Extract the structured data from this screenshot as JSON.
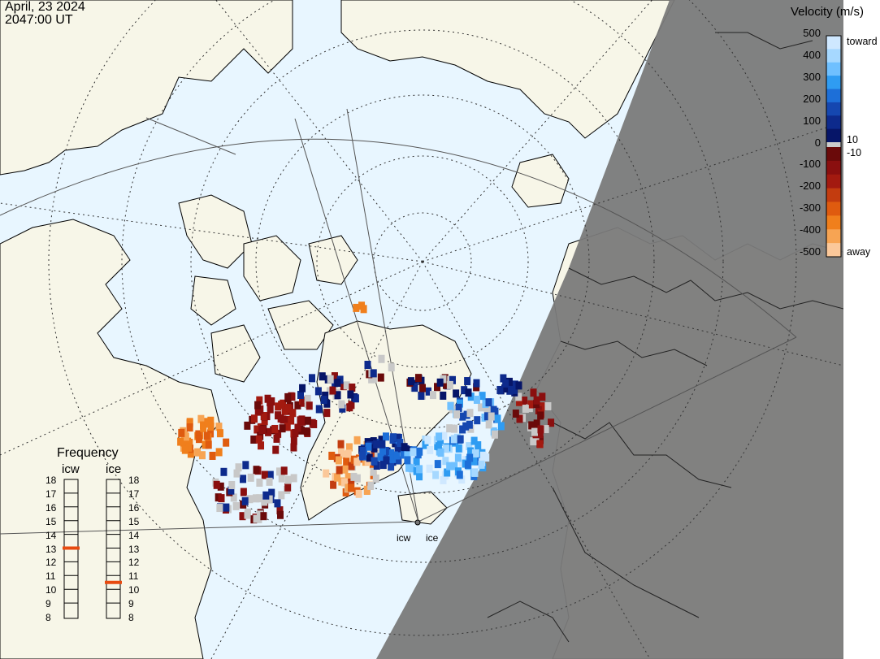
{
  "header": {
    "date": "April, 23 2024",
    "time": "2047:00 UT"
  },
  "velocity_scale": {
    "title": "Velocity (m/s)",
    "ticks": [
      "500",
      "400",
      "300",
      "200",
      "100",
      "0",
      "-100",
      "-200",
      "-300",
      "-400",
      "-500"
    ],
    "inner_labels": [
      "10",
      "-10"
    ],
    "end_labels": {
      "toward": "toward",
      "away": "away"
    },
    "colors_toward": [
      "#cfe8ff",
      "#a6d8ff",
      "#6fc0ff",
      "#2f9cf2",
      "#1d6fd8",
      "#1547b0",
      "#0d2a8c",
      "#061568"
    ],
    "colors_away": [
      "#6a0a0a",
      "#8a0f0f",
      "#a31a10",
      "#c33c0f",
      "#df5b0f",
      "#f07f1c",
      "#f7a453",
      "#fbc89a"
    ]
  },
  "frequency_panel": {
    "title": "Frequency",
    "columns": [
      {
        "name": "icw",
        "selected_mhz": 13
      },
      {
        "name": "ice",
        "selected_mhz": 10.5
      }
    ],
    "scale_mhz": [
      "18",
      "17",
      "16",
      "15",
      "14",
      "13",
      "12",
      "11",
      "10",
      "9",
      "8"
    ],
    "marker_color": "#e84a10"
  },
  "radar_sites": {
    "icw": "icw",
    "ice": "ice"
  },
  "colors": {
    "ocean": "#e8f6ff",
    "land": "#f7f6e8",
    "night": "#777777",
    "ground_scatter": "#c8c8c8"
  }
}
